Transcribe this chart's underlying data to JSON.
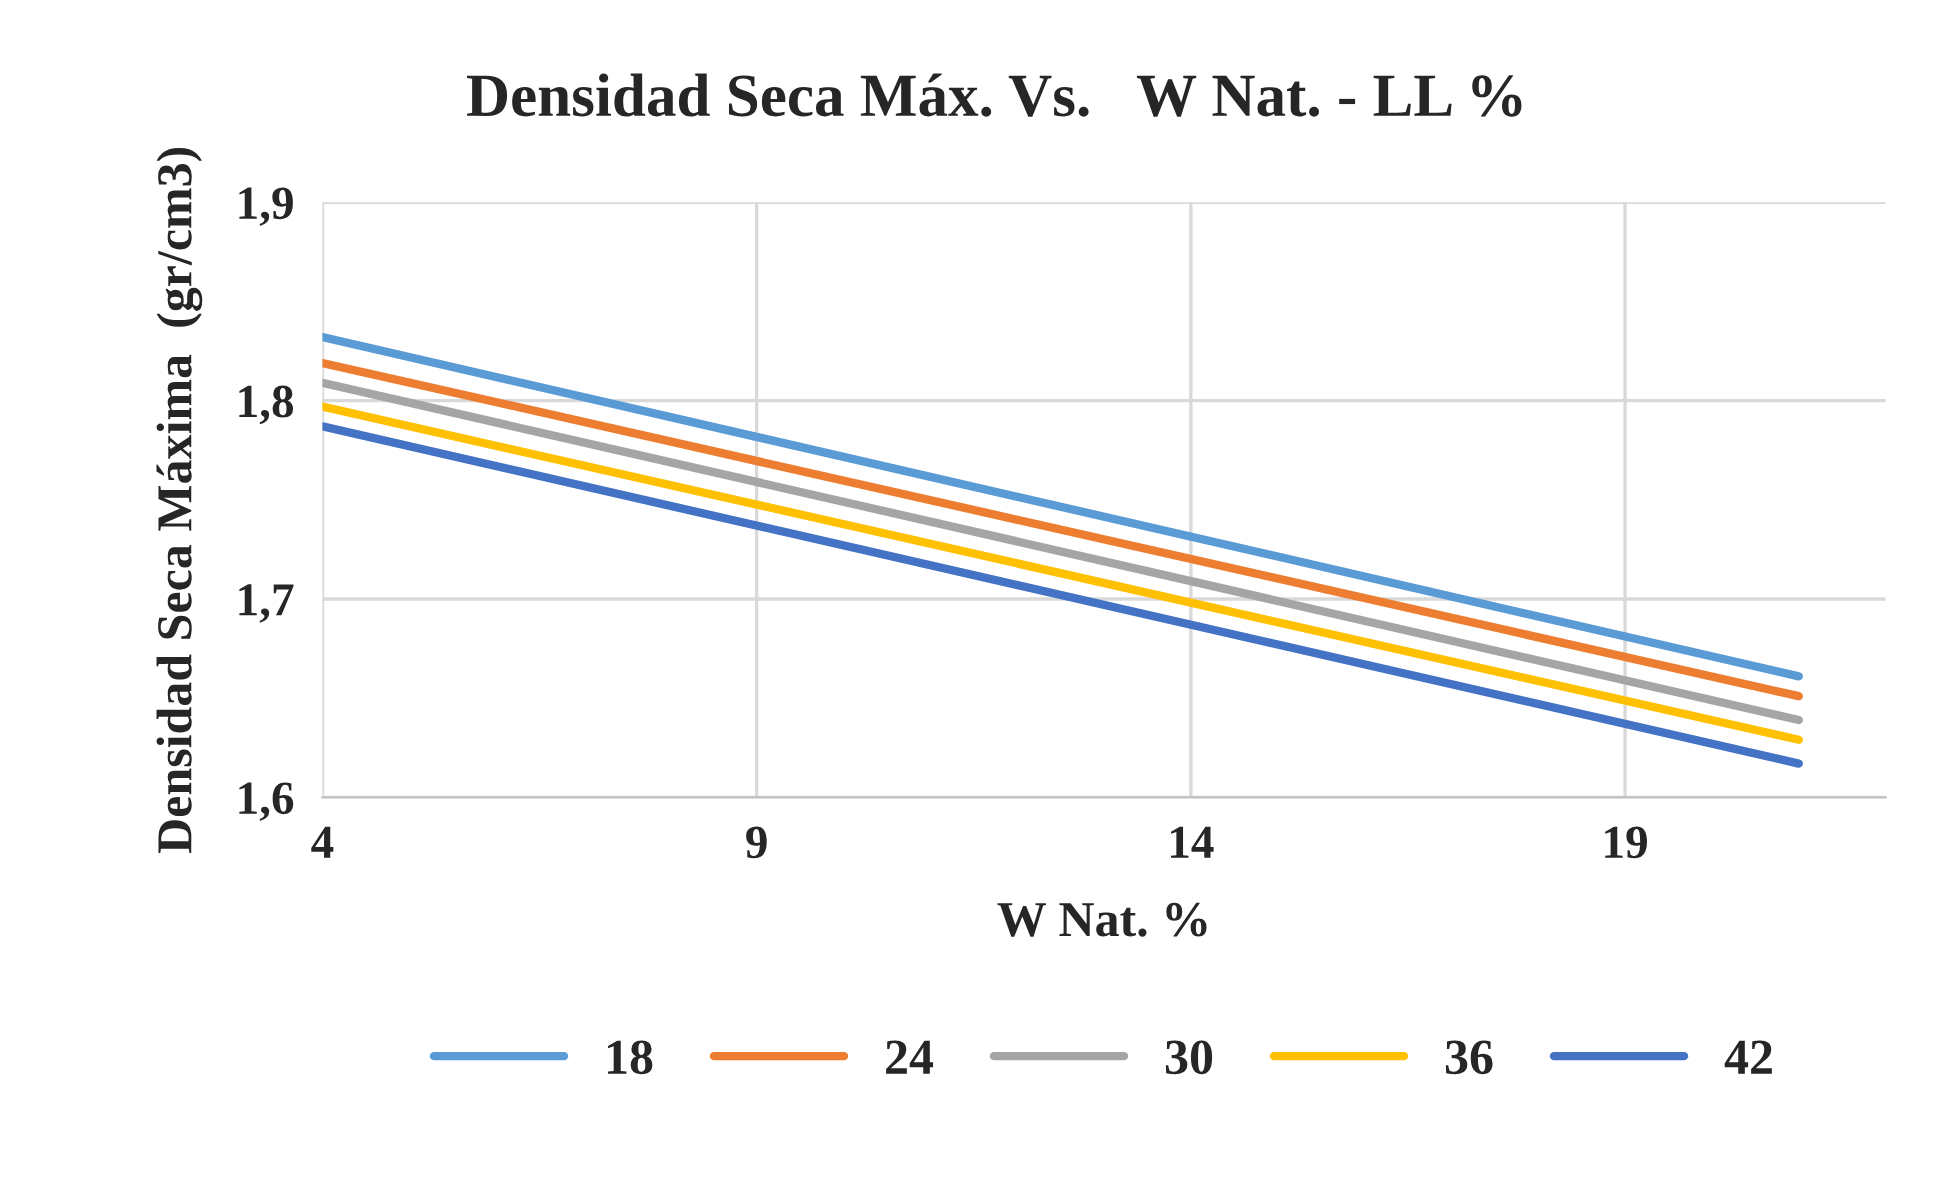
{
  "chart_data": {
    "type": "line",
    "title": "Densidad Seca Máx. Vs.   W Nat. - LL %",
    "xlabel": "W Nat. %",
    "ylabel": "Densidad Seca Máxima  (gr/cm3)",
    "x": [
      4,
      21
    ],
    "series": [
      {
        "name": "18",
        "color": "#5b9bd5",
        "values": [
          1.832,
          1.661
        ]
      },
      {
        "name": "24",
        "color": "#ed7d31",
        "values": [
          1.819,
          1.651
        ]
      },
      {
        "name": "30",
        "color": "#a5a5a5",
        "values": [
          1.809,
          1.639
        ]
      },
      {
        "name": "36",
        "color": "#ffc000",
        "values": [
          1.797,
          1.629
        ]
      },
      {
        "name": "42",
        "color": "#4472c4",
        "values": [
          1.787,
          1.617
        ]
      }
    ],
    "xlim": [
      4,
      22
    ],
    "xticks": [
      4,
      9,
      14,
      19
    ],
    "ylim": [
      1.6,
      1.9
    ],
    "yticks": [
      {
        "value": 1.6,
        "label": "1,6"
      },
      {
        "value": 1.7,
        "label": "1,7"
      },
      {
        "value": 1.8,
        "label": "1,8"
      },
      {
        "value": 1.9,
        "label": "1,9"
      }
    ],
    "grid": true,
    "legend": "bottom",
    "marker": "none",
    "line_style": "solid"
  }
}
